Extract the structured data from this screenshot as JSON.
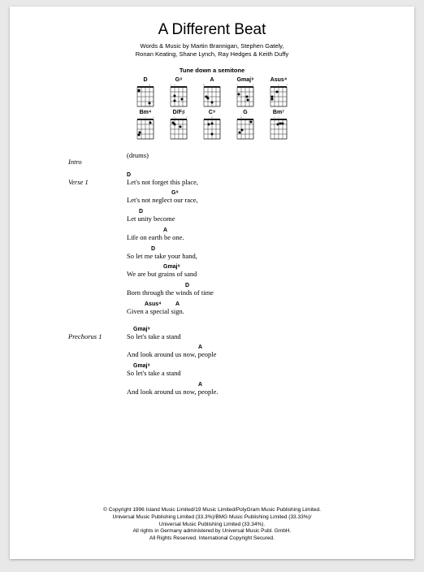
{
  "title": "A Different Beat",
  "credits_line1": "Words & Music by Martin Brannigan, Stephen Gately,",
  "credits_line2": "Ronan Keating, Shane Lynch, Ray Hedges & Keith Duffy",
  "tuning_note": "Tune down a semitone",
  "chord_diagrams": {
    "row1": [
      {
        "name": "D"
      },
      {
        "name": "G⁹"
      },
      {
        "name": "A"
      },
      {
        "name": "Gmaj⁹"
      },
      {
        "name": "Asus⁴"
      }
    ],
    "row2": [
      {
        "name": "Bm⁴"
      },
      {
        "name": "D/F♯"
      },
      {
        "name": "C⁹"
      },
      {
        "name": "G"
      },
      {
        "name": "Bm⁷"
      }
    ]
  },
  "sections": [
    {
      "label": "Intro",
      "lines": [
        {
          "text": "(drums)",
          "chords": []
        }
      ]
    },
    {
      "label": "Verse 1",
      "lines": [
        {
          "text": "Let's not forget this place,",
          "chords": [
            {
              "name": "D",
              "offset": 0
            }
          ]
        },
        {
          "text": "Let's not neglect our race,",
          "chords": [
            {
              "name": "G⁹",
              "offset": 55
            }
          ]
        },
        {
          "text": "Let unity become",
          "chords": [
            {
              "name": "D",
              "offset": 15
            }
          ]
        },
        {
          "text": "Life on earth be one.",
          "chords": [
            {
              "name": "A",
              "offset": 45
            }
          ]
        },
        {
          "text": "So let me take your hand,",
          "chords": [
            {
              "name": "D",
              "offset": 30
            }
          ]
        },
        {
          "text": "We are but grains of sand",
          "chords": [
            {
              "name": "Gmaj⁹",
              "offset": 45
            }
          ]
        },
        {
          "text": "Born through the winds of time",
          "chords": [
            {
              "name": "D",
              "offset": 72
            }
          ]
        },
        {
          "text": "Given a special sign.",
          "chords": [
            {
              "name": "Asus⁴",
              "offset": 22
            },
            {
              "name": "A",
              "offset": 60
            }
          ]
        }
      ]
    },
    {
      "label": "Prechorus 1",
      "lines": [
        {
          "text": "So let's take a stand",
          "chords": [
            {
              "name": "Gmaj⁹",
              "offset": 8
            }
          ]
        },
        {
          "text": "And look around us now, people",
          "chords": [
            {
              "name": "A",
              "offset": 88
            }
          ]
        },
        {
          "text": "So let's take a stand",
          "chords": [
            {
              "name": "Gmaj⁹",
              "offset": 8
            }
          ]
        },
        {
          "text": "And look around us now, people.",
          "chords": [
            {
              "name": "A",
              "offset": 88
            }
          ]
        }
      ]
    }
  ],
  "copyright": [
    "© Copyright 1996 Island Music Limited/19 Music Limited/PolyGram Music Publishing Limited.",
    "Universal Music Publishing Limited (33.3%)/BMG Music Publishing Limited (33.33%)/",
    "Universal Music Publishing Limited (33.34%).",
    "All rights in Germany administered by Universal Music Publ. GmbH.",
    "All Rights Reserved. International Copyright Secured."
  ],
  "style": {
    "page_bg": "#ffffff",
    "outer_bg": "#e8e8e8",
    "title_fontsize": 19,
    "body_fontsize": 8.5,
    "chord_ann_fontsize": 7,
    "copyright_fontsize": 6.5
  }
}
